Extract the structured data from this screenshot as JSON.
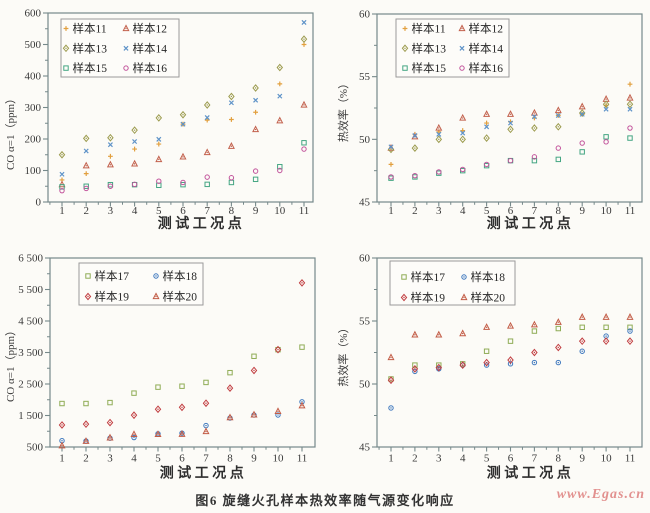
{
  "page": {
    "caption": "图6  旋缝火孔样本热效率随气源变化响应",
    "watermark": "www.Egas.cn",
    "watermark_color": "#e2918f"
  },
  "chart_data": [
    {
      "type": "scatter",
      "position": "top-left",
      "ylabel": "CO α=1（ppm）",
      "xlabel": "测试工况点",
      "ylim": [
        0,
        600
      ],
      "ytick_labels": [
        "0",
        "100",
        "200",
        "300",
        "400",
        "500",
        "600"
      ],
      "xtick_labels": [
        "1",
        "2",
        "3",
        "4",
        "5",
        "6",
        "7",
        "8",
        "9",
        "10",
        "11"
      ],
      "grid": false,
      "legend_position": "upper-left",
      "series": [
        {
          "name": "样本11",
          "marker": "plus",
          "dot": false,
          "color": "#E2A03F",
          "values": [
            70,
            90,
            145,
            168,
            184,
            247,
            260,
            262,
            285,
            375,
            500
          ]
        },
        {
          "name": "样本12",
          "marker": "triangle",
          "dot": true,
          "color": "#C2604C",
          "values": [
            55,
            115,
            118,
            121,
            135,
            143,
            157,
            177,
            230,
            258,
            308
          ]
        },
        {
          "name": "样本13",
          "marker": "diamond",
          "dot": true,
          "color": "#9C9B4E",
          "values": [
            150,
            202,
            204,
            228,
            267,
            277,
            308,
            335,
            362,
            427,
            517
          ]
        },
        {
          "name": "样本14",
          "marker": "x",
          "dot": false,
          "color": "#5F93C8",
          "values": [
            88,
            162,
            182,
            192,
            199,
            247,
            268,
            315,
            323,
            336,
            570
          ]
        },
        {
          "name": "样本15",
          "marker": "square",
          "dot": false,
          "color": "#44A683",
          "values": [
            48,
            50,
            55,
            55,
            53,
            55,
            56,
            62,
            72,
            112,
            188
          ]
        },
        {
          "name": "样本16",
          "marker": "circle",
          "dot": false,
          "color": "#C2539B",
          "values": [
            36,
            43,
            50,
            56,
            66,
            62,
            79,
            77,
            98,
            100,
            168
          ]
        }
      ]
    },
    {
      "type": "scatter",
      "position": "top-right",
      "ylabel": "热效率（%）",
      "xlabel": "测试工况点",
      "ylim": [
        45,
        60
      ],
      "ytick_labels": [
        "45",
        "50",
        "55",
        "60"
      ],
      "xtick_labels": [
        "1",
        "2",
        "3",
        "4",
        "5",
        "6",
        "7",
        "8",
        "9",
        "10",
        "11"
      ],
      "grid": false,
      "legend_position": "upper-left",
      "series": [
        {
          "name": "样本11",
          "marker": "plus",
          "dot": false,
          "color": "#E2A03F",
          "values": [
            48.0,
            50.4,
            50.6,
            50.7,
            51.3,
            51.4,
            51.7,
            51.9,
            52.0,
            52.7,
            54.4
          ]
        },
        {
          "name": "样本12",
          "marker": "triangle",
          "dot": true,
          "color": "#C2604C",
          "values": [
            49.3,
            50.2,
            50.9,
            51.7,
            52.0,
            52.0,
            52.1,
            52.3,
            52.6,
            53.2,
            53.3
          ]
        },
        {
          "name": "样本13",
          "marker": "diamond",
          "dot": true,
          "color": "#9C9B4E",
          "values": [
            49.2,
            49.3,
            50.0,
            50.0,
            50.1,
            50.8,
            50.9,
            51.0,
            52.1,
            52.8,
            52.8
          ]
        },
        {
          "name": "样本14",
          "marker": "x",
          "dot": false,
          "color": "#5F93C8",
          "values": [
            49.4,
            50.3,
            50.4,
            50.5,
            51.0,
            51.3,
            51.8,
            51.9,
            52.0,
            52.4,
            52.4
          ]
        },
        {
          "name": "样本15",
          "marker": "square",
          "dot": false,
          "color": "#44A683",
          "values": [
            46.9,
            47.0,
            47.3,
            47.5,
            47.9,
            48.3,
            48.3,
            48.4,
            49.0,
            50.2,
            50.1
          ]
        },
        {
          "name": "样本16",
          "marker": "circle",
          "dot": false,
          "color": "#C2539B",
          "values": [
            47.0,
            47.1,
            47.4,
            47.6,
            48.0,
            48.3,
            48.6,
            49.3,
            49.7,
            49.8,
            50.9
          ]
        }
      ]
    },
    {
      "type": "scatter",
      "position": "bottom-left",
      "ylabel": "CO α=1（ppm）",
      "xlabel": "测试工况点",
      "ylim": [
        500,
        6500
      ],
      "ytick_labels": [
        "500",
        "1 500",
        "2 500",
        "3 500",
        "4 500",
        "5 500",
        "6 500"
      ],
      "xtick_labels": [
        "1",
        "2",
        "3",
        "4",
        "5",
        "6",
        "7",
        "8",
        "9",
        "10",
        "11"
      ],
      "grid": false,
      "legend_position": "upper-left",
      "series": [
        {
          "name": "样本17",
          "marker": "square",
          "dot": false,
          "color": "#8FAC56",
          "values": [
            1880,
            1880,
            1910,
            2210,
            2400,
            2430,
            2550,
            2860,
            3380,
            3590,
            3670
          ]
        },
        {
          "name": "样本18",
          "marker": "circle",
          "dot": true,
          "color": "#3E78BE",
          "values": [
            700,
            690,
            780,
            800,
            920,
            940,
            1180,
            1420,
            1515,
            1515,
            1935
          ]
        },
        {
          "name": "样本19",
          "marker": "diamond",
          "dot": true,
          "color": "#C13D40",
          "values": [
            1200,
            1225,
            1275,
            1510,
            1700,
            1760,
            1890,
            2370,
            2930,
            3590,
            5710
          ]
        },
        {
          "name": "样本20",
          "marker": "triangle",
          "dot": true,
          "color": "#C25B45",
          "values": [
            540,
            680,
            790,
            900,
            900,
            905,
            990,
            1430,
            1520,
            1630,
            1810
          ]
        }
      ]
    },
    {
      "type": "scatter",
      "position": "bottom-right",
      "ylabel": "热效率（%）",
      "xlabel": "测试工况点",
      "ylim": [
        45,
        60
      ],
      "ytick_labels": [
        "45",
        "50",
        "55",
        "60"
      ],
      "xtick_labels": [
        "1",
        "2",
        "3",
        "4",
        "5",
        "6",
        "7",
        "8",
        "9",
        "10",
        "11"
      ],
      "grid": false,
      "legend_position": "upper-left",
      "series": [
        {
          "name": "样本17",
          "marker": "square",
          "dot": false,
          "color": "#8FAC56",
          "values": [
            50.4,
            51.5,
            51.5,
            51.6,
            52.6,
            53.4,
            54.2,
            54.4,
            54.5,
            54.5,
            54.5
          ]
        },
        {
          "name": "样本18",
          "marker": "circle",
          "dot": true,
          "color": "#3E78BE",
          "values": [
            48.1,
            51.0,
            51.2,
            51.5,
            51.5,
            51.6,
            51.7,
            51.7,
            52.6,
            53.8,
            54.2
          ]
        },
        {
          "name": "样本19",
          "marker": "diamond",
          "dot": true,
          "color": "#C13D40",
          "values": [
            50.3,
            51.2,
            51.3,
            51.5,
            51.7,
            51.9,
            52.5,
            52.9,
            53.4,
            53.4,
            53.4
          ]
        },
        {
          "name": "样本20",
          "marker": "triangle",
          "dot": true,
          "color": "#C25B45",
          "values": [
            52.1,
            53.9,
            53.9,
            54.0,
            54.5,
            54.6,
            54.7,
            54.9,
            55.3,
            55.3,
            55.3
          ]
        }
      ]
    }
  ]
}
